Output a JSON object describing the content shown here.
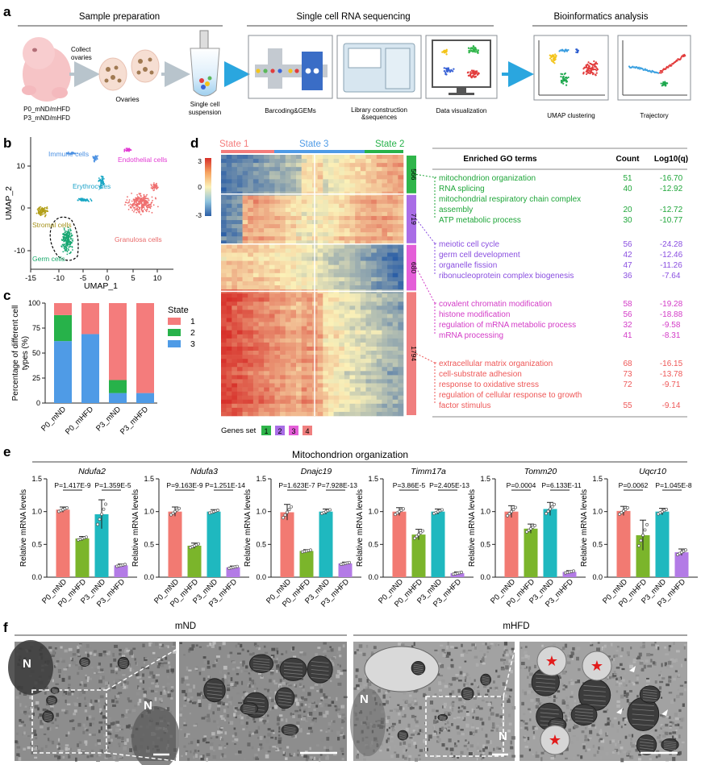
{
  "colors": {
    "state1": "#f47c7c",
    "state2": "#27b24a",
    "state3": "#4f9be6",
    "set1": "#2fb54a",
    "set2": "#a96de6",
    "set3": "#e45ed8",
    "set4": "#f07f7f",
    "bar_p0nd": "#f27a72",
    "bar_p0hfd": "#7bb52b",
    "bar_p3nd": "#1fb8bf",
    "bar_p3hfd": "#b37be6",
    "go_green": "#1fa63a",
    "go_purple": "#8a4fe0",
    "go_magenta": "#d33bc7",
    "go_red": "#ee5757"
  },
  "panel_a": {
    "label": "a",
    "headers": [
      "Sample preparation",
      "Single cell RNA sequencing",
      "Bioinformatics analysis"
    ],
    "collect_text": "Collect\novaries",
    "group_line1": "P0_mND/mHFD",
    "group_line2": "P3_mND/mHFD",
    "ovaries": "Ovaries",
    "suspension": "Single cell\nsuspension",
    "barcoding": "Barcoding&GEMs",
    "library": "Library construction\n&sequences",
    "dataviz": "Data visualization",
    "umap": "UMAP clustering",
    "trajectory": "Trajectory"
  },
  "panel_b": {
    "label": "b",
    "xlabel": "UMAP_1",
    "ylabel": "UMAP_2",
    "xticks": [
      "-15",
      "-10",
      "-5",
      "0",
      "5",
      "10"
    ],
    "yticks": [
      "10",
      "0",
      "-10"
    ],
    "clusters": [
      "Immune cells",
      "Endothelial cells",
      "Erythrocytes",
      "Stromal cells",
      "Granulosa cells",
      "Germ cells"
    ]
  },
  "panel_c": {
    "label": "c",
    "ylabel": "Percentage of different cell types (%)",
    "legend_title": "State",
    "chart_data": {
      "type": "bar",
      "stacked": true,
      "categories": [
        "P0_mND",
        "P0_mHFD",
        "P3_mND",
        "P3_mHFD"
      ],
      "series": [
        {
          "name": "1",
          "values": [
            12,
            31,
            77,
            90
          ]
        },
        {
          "name": "2",
          "values": [
            26,
            0,
            13,
            0
          ]
        },
        {
          "name": "3",
          "values": [
            62,
            69,
            10,
            10
          ]
        }
      ],
      "ylabel": "Percentage of different cell types (%)",
      "ylim": [
        0,
        100
      ],
      "yticks": [
        "0",
        "25",
        "50",
        "75",
        "100"
      ]
    }
  },
  "panel_d": {
    "label": "d",
    "states": [
      "State 1",
      "State 3",
      "State 2"
    ],
    "scale_ticks": [
      "3",
      "0",
      "-3"
    ],
    "gene_sets": [
      {
        "count": "566",
        "terms": [
          {
            "name": "mitochondrion organization",
            "count": "51",
            "logq": "-16.70"
          },
          {
            "name": "RNA splicing",
            "count": "40",
            "logq": "-12.92"
          },
          {
            "name": "mitochondrial respiratory chain complex",
            "name2": "assembly",
            "count": "20",
            "logq": "-12.72"
          },
          {
            "name": "ATP metabolic process",
            "count": "30",
            "logq": "-10.77"
          }
        ]
      },
      {
        "count": "719",
        "terms": [
          {
            "name": "meiotic cell cycle",
            "count": "56",
            "logq": "-24.28"
          },
          {
            "name": "germ cell development",
            "count": "42",
            "logq": "-12.46"
          },
          {
            "name": "organelle fission",
            "count": "47",
            "logq": "-11.26"
          },
          {
            "name": "ribonucleoprotein complex biogenesis",
            "count": "36",
            "logq": "-7.64"
          }
        ]
      },
      {
        "count": "680",
        "terms": [
          {
            "name": "covalent chromatin modification",
            "count": "58",
            "logq": "-19.28"
          },
          {
            "name": "histone modification",
            "count": "56",
            "logq": "-18.88"
          },
          {
            "name": "regulation of mRNA metabolic process",
            "count": "32",
            "logq": "-9.58"
          },
          {
            "name": "mRNA processing",
            "count": "41",
            "logq": "-8.31"
          }
        ]
      },
      {
        "count": "1794",
        "terms": [
          {
            "name": "extracellular matrix organization",
            "count": "68",
            "logq": "-16.15"
          },
          {
            "name": "cell-substrate adhesion",
            "count": "73",
            "logq": "-13.78"
          },
          {
            "name": "response to oxidative stress",
            "count": "72",
            "logq": "-9.71"
          },
          {
            "name": "regulation of cellular response to growth",
            "name2": "factor stimulus",
            "count": "55",
            "logq": "-9.14"
          }
        ]
      }
    ],
    "table_headers": [
      "Enriched GO terms",
      "Count",
      "Log10(q)"
    ],
    "genes_set_label": "Genes set",
    "genes_set_items": [
      "1",
      "2",
      "3",
      "4"
    ]
  },
  "panel_e": {
    "label": "e",
    "title": "Mitochondrion organization",
    "ylabel": "Relative mRNA levels",
    "yticks": [
      "0.0",
      "0.5",
      "1.0",
      "1.5"
    ],
    "categories": [
      "P0_mND",
      "P0_mHFD",
      "P3_mND",
      "P3_mHFD"
    ],
    "chart_data": [
      {
        "type": "bar",
        "gene": "Ndufa2",
        "p1": "P=1.417E-9",
        "p2": "P=1.359E-5",
        "values": [
          1.03,
          0.59,
          0.96,
          0.18
        ],
        "errors": [
          0.04,
          0.03,
          0.22,
          0.02
        ],
        "ylim": [
          0,
          1.5
        ]
      },
      {
        "type": "bar",
        "gene": "Ndufa3",
        "p1": "P=9.163E-9",
        "p2": "P=1.251E-14",
        "values": [
          1.0,
          0.48,
          1.0,
          0.15
        ],
        "errors": [
          0.07,
          0.04,
          0.03,
          0.02
        ],
        "ylim": [
          0,
          1.5
        ]
      },
      {
        "type": "bar",
        "gene": "Dnajc19",
        "p1": "P=1.623E-7",
        "p2": "P=7.928E-13",
        "values": [
          0.99,
          0.4,
          1.0,
          0.21
        ],
        "errors": [
          0.12,
          0.02,
          0.04,
          0.02
        ],
        "ylim": [
          0,
          1.5
        ]
      },
      {
        "type": "bar",
        "gene": "Timm17a",
        "p1": "P=3.86E-5",
        "p2": "P=2.405E-13",
        "values": [
          1.0,
          0.65,
          1.0,
          0.06
        ],
        "errors": [
          0.06,
          0.08,
          0.04,
          0.02
        ],
        "ylim": [
          0,
          1.5
        ]
      },
      {
        "type": "bar",
        "gene": "Tomm20",
        "p1": "P=0.0004",
        "p2": "P=6.133E-11",
        "values": [
          1.0,
          0.74,
          1.04,
          0.08
        ],
        "errors": [
          0.09,
          0.07,
          0.1,
          0.02
        ],
        "ylim": [
          0,
          1.5
        ]
      },
      {
        "type": "bar",
        "gene": "Uqcr10",
        "p1": "P=0.0062",
        "p2": "P=1.045E-8",
        "values": [
          1.01,
          0.64,
          1.0,
          0.38
        ],
        "errors": [
          0.07,
          0.23,
          0.05,
          0.05
        ],
        "ylim": [
          0,
          1.5
        ]
      }
    ]
  },
  "panel_f": {
    "label": "f",
    "groups": [
      "mND",
      "mHFD"
    ],
    "n_label": "N"
  }
}
